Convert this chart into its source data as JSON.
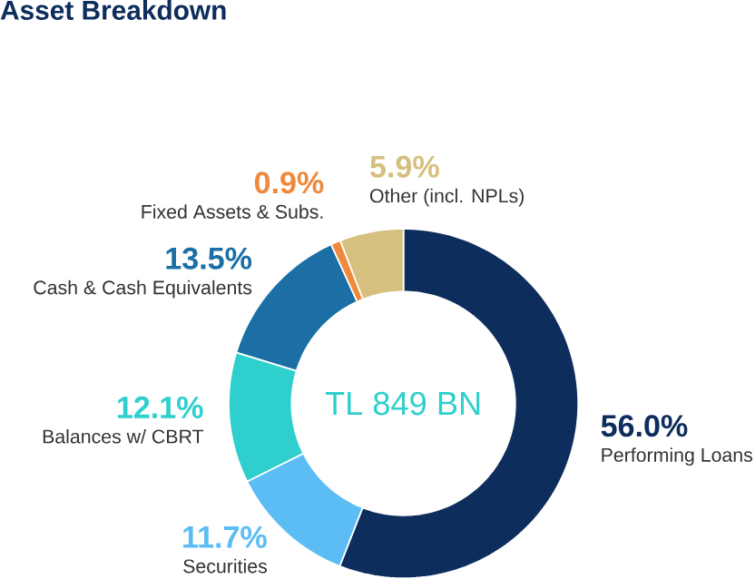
{
  "chart_data": {
    "type": "donut",
    "title": "Asset Breakdown",
    "categories": [
      "Performing Loans",
      "Securities",
      "Balances w/ CBRT",
      "Cash & Cash Equivalents",
      "Fixed Assets & Subs.",
      "Other (incl. NPLs)"
    ],
    "values": [
      56.0,
      11.7,
      12.1,
      13.5,
      0.9,
      5.9
    ],
    "colors": [
      "#0d2d5c",
      "#5cbcf4",
      "#2ecfcd",
      "#1b6fa5",
      "#ef8a3d",
      "#d6c07f"
    ],
    "value_labels": [
      "56.0%",
      "11.7%",
      "12.1%",
      "13.5%",
      "0.9%",
      "5.9%"
    ],
    "annotations": [
      "TL 849 BN"
    ]
  }
}
